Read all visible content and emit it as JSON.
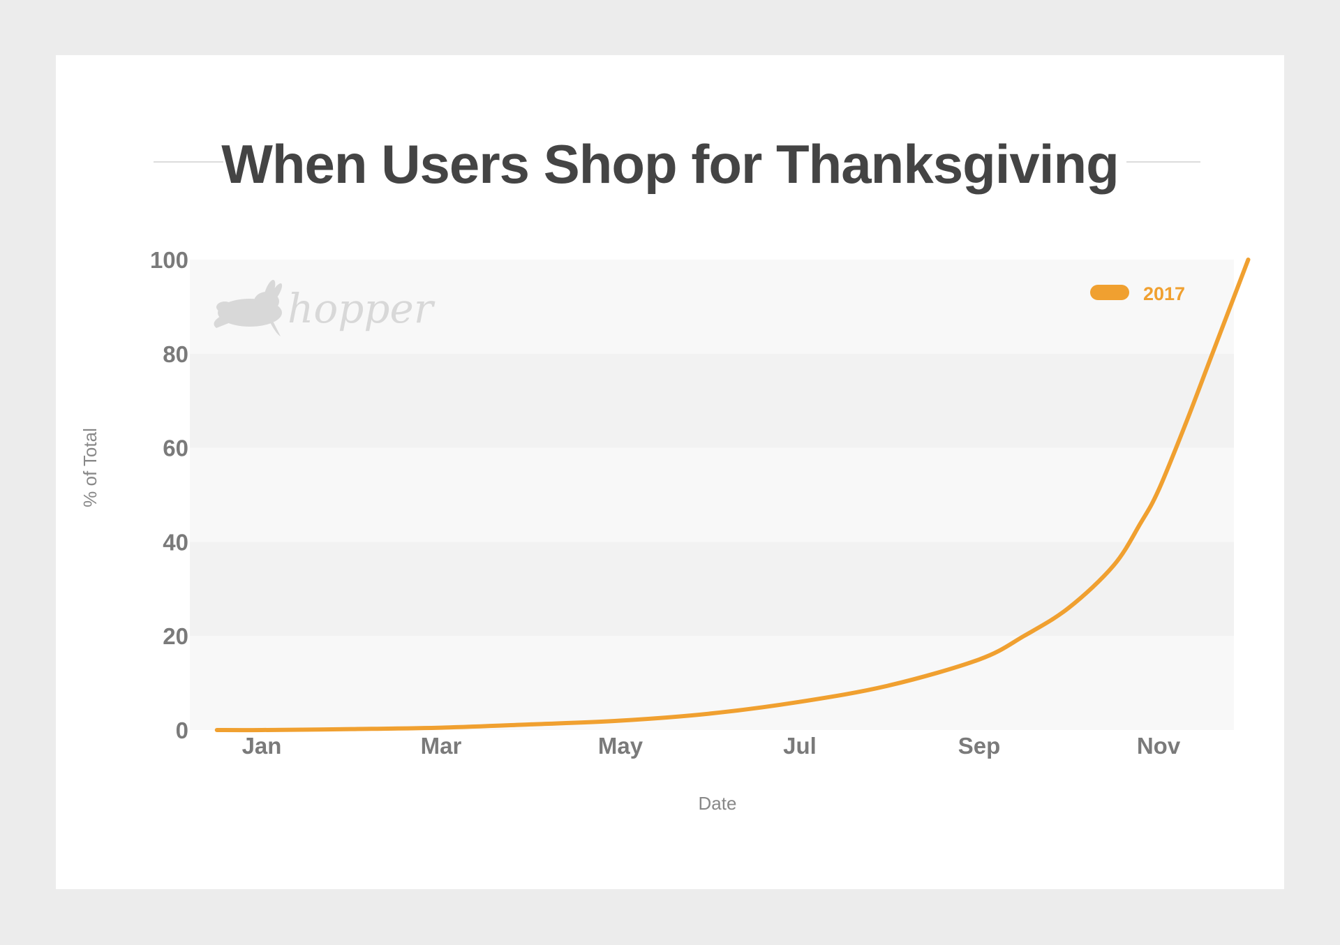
{
  "page": {
    "background_color": "#ececec",
    "card_color": "#ffffff",
    "line_color": "#f0a030"
  },
  "watermark": {
    "text": "hopper",
    "icon": "rabbit-icon"
  },
  "chart_data": {
    "type": "line",
    "title": "When Users Shop for Thanksgiving",
    "xlabel": "Date",
    "ylabel": "% of Total",
    "ylim": [
      0,
      100
    ],
    "yticks": [
      0,
      20,
      40,
      60,
      80,
      100
    ],
    "ytick_labels": [
      "0",
      "20",
      "40",
      "60",
      "80",
      "100"
    ],
    "xtick_labels": [
      "Jan",
      "Mar",
      "May",
      "Jul",
      "Sep",
      "Nov"
    ],
    "xtick_months": [
      1,
      3,
      5,
      7,
      9,
      11
    ],
    "grid": false,
    "legend_position": "top-right",
    "series": [
      {
        "name": "2017",
        "color": "#f0a030",
        "points": [
          {
            "month": 0.5,
            "y": 0
          },
          {
            "month": 1,
            "y": 0
          },
          {
            "month": 2,
            "y": 0.2
          },
          {
            "month": 3,
            "y": 0.5
          },
          {
            "month": 4,
            "y": 1.2
          },
          {
            "month": 5,
            "y": 2
          },
          {
            "month": 6,
            "y": 3.5
          },
          {
            "month": 7,
            "y": 6
          },
          {
            "month": 8,
            "y": 9.5
          },
          {
            "month": 9,
            "y": 15
          },
          {
            "month": 9.5,
            "y": 20
          },
          {
            "month": 10,
            "y": 26
          },
          {
            "month": 10.5,
            "y": 35
          },
          {
            "month": 10.8,
            "y": 44
          },
          {
            "month": 11,
            "y": 51
          },
          {
            "month": 11.3,
            "y": 65
          },
          {
            "month": 11.6,
            "y": 80
          },
          {
            "month": 12,
            "y": 100
          }
        ]
      }
    ]
  }
}
